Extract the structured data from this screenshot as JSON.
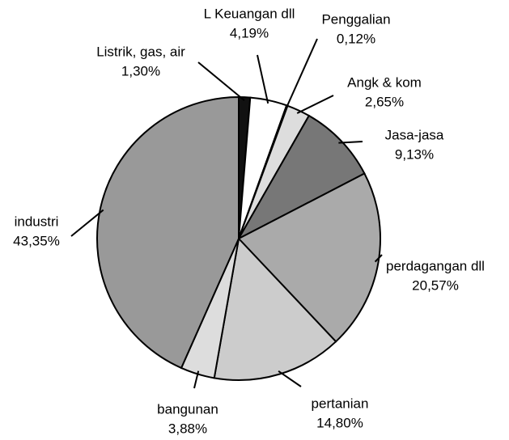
{
  "chart_data": {
    "type": "pie",
    "categories": [
      "Listrik, gas, air",
      "L Keuangan dll",
      "Penggalian",
      "Angk & kom",
      "Jasa-jasa",
      "perdagangan dll",
      "pertanian",
      "bangunan",
      "industri"
    ],
    "values": [
      1.3,
      4.19,
      0.12,
      2.65,
      9.13,
      20.57,
      14.8,
      3.88,
      43.35
    ],
    "value_labels": [
      "1,30%",
      "4,19%",
      "0,12%",
      "2,65%",
      "9,13%",
      "20,57%",
      "14,80%",
      "3,88%",
      "43,35%"
    ],
    "colors": [
      "#111111",
      "#ffffff",
      "#ffffff",
      "#dddddd",
      "#777777",
      "#aaaaaa",
      "#cccccc",
      "#dddddd",
      "#999999"
    ]
  }
}
